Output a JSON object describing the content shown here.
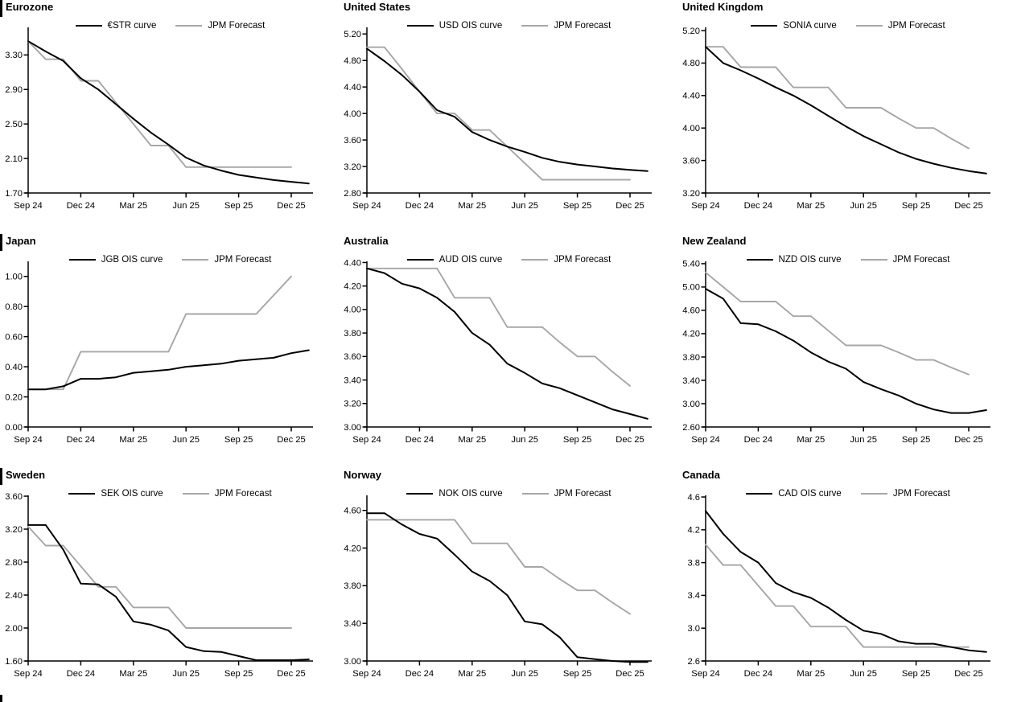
{
  "page": {
    "background": "#ffffff",
    "colors": {
      "ois_line": "#000000",
      "forecast_line": "#a6a6a6"
    }
  },
  "x_axis": {
    "labels": [
      "Sep 24",
      "Dec 24",
      "Mar 25",
      "Jun 25",
      "Sep 25",
      "Dec 25"
    ],
    "tick_months": [
      0,
      3,
      6,
      9,
      12,
      15
    ],
    "months_end": 16.2,
    "note": "series sampled monthly starting Sep 24"
  },
  "chart_data": [
    {
      "type": "line",
      "title": "Eurozone",
      "section_bar": true,
      "ylim": [
        1.7,
        3.62
      ],
      "yticks": [
        "1.70",
        "2.10",
        "2.50",
        "2.90",
        "3.30"
      ],
      "legend_position": "top-center",
      "grid": false,
      "series": [
        {
          "name": "€STR curve",
          "color": "#000000",
          "values": [
            3.46,
            3.34,
            3.23,
            3.03,
            2.9,
            2.73,
            2.56,
            2.4,
            2.26,
            2.11,
            2.02,
            1.96,
            1.91,
            1.88,
            1.85,
            1.83,
            1.81
          ]
        },
        {
          "name": "JPM Forecast",
          "color": "#a6a6a6",
          "values": [
            3.46,
            3.25,
            3.25,
            3.0,
            3.0,
            2.75,
            2.5,
            2.25,
            2.25,
            2.0,
            2.0,
            2.0,
            2.0,
            2.0,
            2.0,
            2.0
          ]
        }
      ]
    },
    {
      "type": "line",
      "title": "United States",
      "section_bar": false,
      "ylim": [
        2.8,
        5.3
      ],
      "yticks": [
        "2.80",
        "3.20",
        "3.60",
        "4.00",
        "4.40",
        "4.80",
        "5.20"
      ],
      "legend_position": "top-center",
      "grid": false,
      "series": [
        {
          "name": "USD OIS curve",
          "color": "#000000",
          "values": [
            4.98,
            4.79,
            4.58,
            4.33,
            4.05,
            3.95,
            3.72,
            3.6,
            3.5,
            3.42,
            3.33,
            3.27,
            3.23,
            3.2,
            3.17,
            3.15,
            3.13
          ]
        },
        {
          "name": "JPM Forecast",
          "color": "#a6a6a6",
          "values": [
            5.0,
            5.0,
            4.67,
            4.33,
            4.0,
            4.0,
            3.75,
            3.75,
            3.5,
            3.25,
            3.0,
            3.0,
            3.0,
            3.0,
            3.0,
            3.0
          ]
        }
      ]
    },
    {
      "type": "line",
      "title": "United Kingdom",
      "section_bar": false,
      "ylim": [
        3.2,
        5.24
      ],
      "yticks": [
        "3.20",
        "3.60",
        "4.00",
        "4.40",
        "4.80",
        "5.20"
      ],
      "legend_position": "top-center",
      "grid": false,
      "series": [
        {
          "name": "SONIA curve",
          "color": "#000000",
          "values": [
            5.0,
            4.8,
            4.71,
            4.61,
            4.5,
            4.4,
            4.28,
            4.15,
            4.02,
            3.9,
            3.8,
            3.7,
            3.62,
            3.56,
            3.51,
            3.47,
            3.44
          ]
        },
        {
          "name": "JPM Forecast",
          "color": "#a6a6a6",
          "values": [
            5.0,
            5.0,
            4.75,
            4.75,
            4.75,
            4.5,
            4.5,
            4.5,
            4.25,
            4.25,
            4.25,
            4.12,
            4.0,
            4.0,
            3.87,
            3.75
          ]
        }
      ]
    },
    {
      "type": "line",
      "title": "Japan",
      "section_bar": true,
      "ylim": [
        0.0,
        1.1
      ],
      "yticks": [
        "0.00",
        "0.20",
        "0.40",
        "0.60",
        "0.80",
        "1.00"
      ],
      "legend_position": "top-center",
      "grid": false,
      "series": [
        {
          "name": "JGB OIS curve",
          "color": "#000000",
          "values": [
            0.25,
            0.25,
            0.27,
            0.32,
            0.32,
            0.33,
            0.36,
            0.37,
            0.38,
            0.4,
            0.41,
            0.42,
            0.44,
            0.45,
            0.46,
            0.49,
            0.51
          ]
        },
        {
          "name": "JPM Forecast",
          "color": "#a6a6a6",
          "values": [
            0.25,
            0.25,
            0.25,
            0.5,
            0.5,
            0.5,
            0.5,
            0.5,
            0.5,
            0.75,
            0.75,
            0.75,
            0.75,
            0.75,
            0.875,
            1.0
          ]
        }
      ]
    },
    {
      "type": "line",
      "title": "Australia",
      "section_bar": false,
      "ylim": [
        3.0,
        4.41
      ],
      "yticks": [
        "3.00",
        "3.20",
        "3.40",
        "3.60",
        "3.80",
        "4.00",
        "4.20",
        "4.40"
      ],
      "legend_position": "top-center",
      "grid": false,
      "series": [
        {
          "name": "AUD OIS curve",
          "color": "#000000",
          "values": [
            4.35,
            4.31,
            4.22,
            4.18,
            4.1,
            3.98,
            3.8,
            3.7,
            3.54,
            3.46,
            3.37,
            3.33,
            3.27,
            3.21,
            3.15,
            3.11,
            3.07
          ]
        },
        {
          "name": "JPM Forecast",
          "color": "#a6a6a6",
          "values": [
            4.35,
            4.35,
            4.35,
            4.35,
            4.35,
            4.1,
            4.1,
            4.1,
            3.85,
            3.85,
            3.85,
            3.72,
            3.6,
            3.6,
            3.47,
            3.35
          ]
        }
      ]
    },
    {
      "type": "line",
      "title": "New Zealand",
      "section_bar": false,
      "ylim": [
        2.6,
        5.44
      ],
      "yticks": [
        "2.60",
        "3.00",
        "3.40",
        "3.80",
        "4.20",
        "4.60",
        "5.00",
        "5.40"
      ],
      "legend_position": "top-center",
      "grid": false,
      "series": [
        {
          "name": "NZD OIS curve",
          "color": "#000000",
          "values": [
            4.97,
            4.8,
            4.38,
            4.36,
            4.24,
            4.08,
            3.88,
            3.72,
            3.6,
            3.37,
            3.25,
            3.14,
            3.0,
            2.9,
            2.84,
            2.84,
            2.89
          ]
        },
        {
          "name": "JPM Forecast",
          "color": "#a6a6a6",
          "values": [
            5.25,
            5.0,
            4.75,
            4.75,
            4.75,
            4.5,
            4.5,
            4.25,
            4.0,
            4.0,
            4.0,
            3.88,
            3.75,
            3.75,
            3.62,
            3.5
          ]
        }
      ]
    },
    {
      "type": "line",
      "title": "Sweden",
      "section_bar": true,
      "ylim": [
        1.6,
        3.61
      ],
      "yticks": [
        "1.60",
        "2.00",
        "2.40",
        "2.80",
        "3.20",
        "3.60"
      ],
      "legend_position": "top-center",
      "grid": false,
      "series": [
        {
          "name": "SEK OIS curve",
          "color": "#000000",
          "values": [
            3.25,
            3.25,
            2.95,
            2.54,
            2.53,
            2.38,
            2.08,
            2.04,
            1.97,
            1.77,
            1.72,
            1.71,
            1.66,
            1.61,
            1.61,
            1.61,
            1.62
          ]
        },
        {
          "name": "JPM Forecast",
          "color": "#a6a6a6",
          "values": [
            3.23,
            3.0,
            3.0,
            2.75,
            2.5,
            2.5,
            2.25,
            2.25,
            2.25,
            2.0,
            2.0,
            2.0,
            2.0,
            2.0,
            2.0,
            2.0
          ]
        }
      ]
    },
    {
      "type": "line",
      "title": "Norway",
      "section_bar": false,
      "ylim": [
        3.0,
        4.76
      ],
      "yticks": [
        "3.00",
        "3.40",
        "3.80",
        "4.20",
        "4.60"
      ],
      "legend_position": "top-center",
      "grid": false,
      "series": [
        {
          "name": "NOK OIS curve",
          "color": "#000000",
          "values": [
            4.57,
            4.57,
            4.45,
            4.35,
            4.3,
            4.13,
            3.95,
            3.85,
            3.7,
            3.42,
            3.39,
            3.25,
            3.04,
            3.02,
            3.0,
            2.99,
            2.99
          ]
        },
        {
          "name": "JPM Forecast",
          "color": "#a6a6a6",
          "values": [
            4.5,
            4.5,
            4.5,
            4.5,
            4.5,
            4.5,
            4.25,
            4.25,
            4.25,
            4.0,
            4.0,
            3.87,
            3.75,
            3.75,
            3.62,
            3.5
          ]
        }
      ]
    },
    {
      "type": "line",
      "title": "Canada",
      "section_bar": false,
      "ylim": [
        2.6,
        4.62
      ],
      "yticks": [
        "2.6",
        "3.0",
        "3.4",
        "3.8",
        "4.2",
        "4.6"
      ],
      "legend_position": "top-center",
      "grid": false,
      "series": [
        {
          "name": "CAD OIS curve",
          "color": "#000000",
          "values": [
            4.43,
            4.15,
            3.93,
            3.8,
            3.55,
            3.44,
            3.37,
            3.25,
            3.1,
            2.97,
            2.93,
            2.84,
            2.81,
            2.81,
            2.77,
            2.73,
            2.71
          ]
        },
        {
          "name": "JPM Forecast",
          "color": "#a6a6a6",
          "values": [
            4.02,
            3.77,
            3.77,
            3.52,
            3.27,
            3.27,
            3.02,
            3.02,
            3.02,
            2.77,
            2.77,
            2.77,
            2.77,
            2.77,
            2.77,
            2.77
          ]
        }
      ]
    }
  ]
}
